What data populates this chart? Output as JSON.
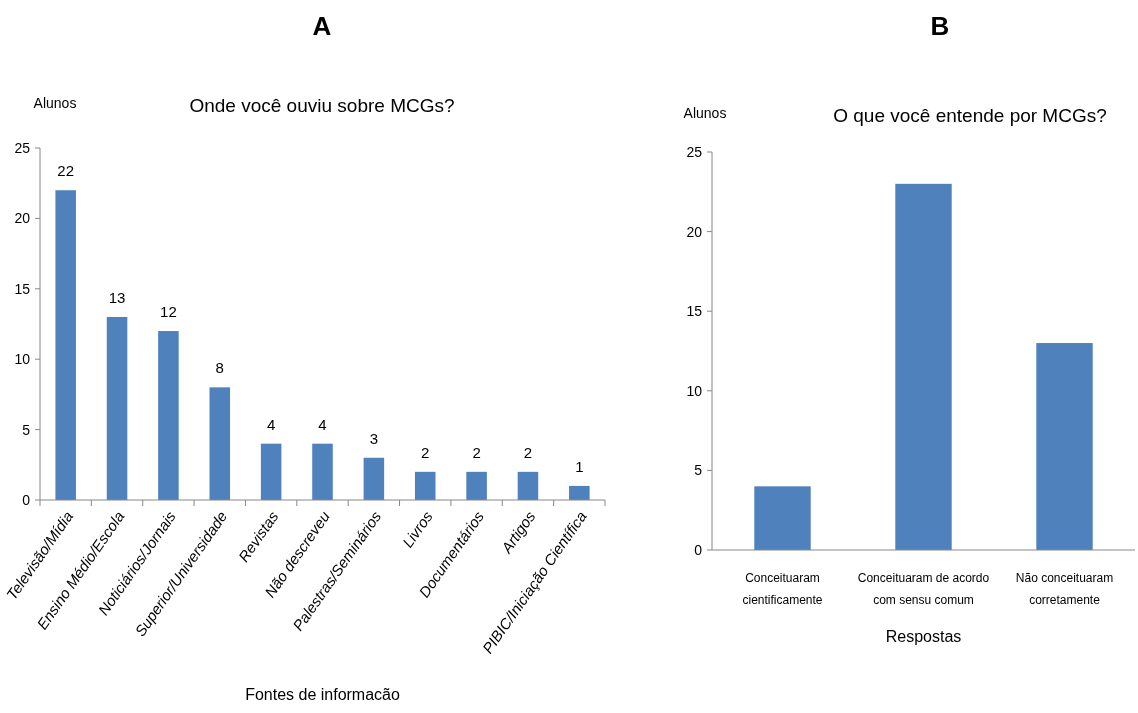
{
  "chart_data": [
    {
      "type": "bar",
      "title": "A",
      "subtitle": "Onde você ouviu sobre MCGs?",
      "xlabel": "Fontes de informacão",
      "ylabel": "Alunos",
      "categories": [
        "Televisão/Mídia",
        "Ensino Médio/Escola",
        "Noticiários/Jornais",
        "Superior/Universidade",
        "Revistas",
        "Não descreveu",
        "Palestras/Seminários",
        "Livros",
        "Documentários",
        "Artigos",
        "PIBIC/Iniciação Científica"
      ],
      "values": [
        22,
        13,
        12,
        8,
        4,
        4,
        3,
        2,
        2,
        2,
        1
      ],
      "color": "#4f81bd",
      "ylim": [
        0,
        25
      ],
      "yticks": [
        0,
        5,
        10,
        15,
        20,
        25
      ],
      "data_labels": true
    },
    {
      "type": "bar",
      "title": "B",
      "subtitle": "O que você entende por MCGs?",
      "xlabel": "Respostas",
      "ylabel": "Alunos",
      "categories": [
        "Conceituaram cientificamente",
        "Conceituaram de acordo com sensu comum",
        "Não conceituaram corretamente"
      ],
      "values": [
        4,
        23,
        13
      ],
      "color": "#4f81bd",
      "ylim": [
        0,
        25
      ],
      "yticks": [
        0,
        5,
        10,
        15,
        20,
        25
      ]
    }
  ]
}
